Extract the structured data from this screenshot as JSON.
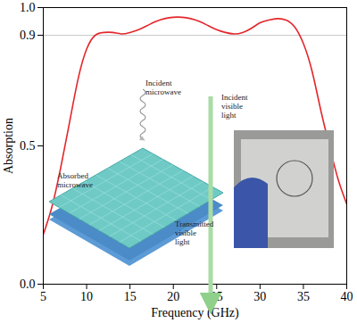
{
  "chart_data": {
    "type": "line",
    "xlabel": "Frequency (GHz)",
    "ylabel": "Absorption",
    "x": [
      5,
      6,
      7,
      8,
      9,
      10,
      11,
      12,
      13,
      14,
      15,
      16,
      17,
      18,
      19,
      20,
      21,
      22,
      23,
      24,
      25,
      26,
      27,
      28,
      29,
      30,
      31,
      32,
      33,
      34,
      35,
      36,
      37,
      38,
      39,
      40
    ],
    "values": [
      0.18,
      0.28,
      0.42,
      0.58,
      0.74,
      0.85,
      0.9,
      0.91,
      0.91,
      0.905,
      0.91,
      0.92,
      0.935,
      0.95,
      0.96,
      0.965,
      0.965,
      0.96,
      0.95,
      0.935,
      0.92,
      0.91,
      0.905,
      0.91,
      0.925,
      0.945,
      0.955,
      0.96,
      0.955,
      0.93,
      0.87,
      0.77,
      0.63,
      0.5,
      0.38,
      0.29
    ],
    "color": "#e3262b",
    "xlim": [
      5,
      40
    ],
    "xticks": [
      5,
      10,
      15,
      20,
      25,
      30,
      35,
      40
    ],
    "ylim": [
      0,
      1
    ],
    "yticks": [
      {
        "value": 0,
        "label": "0.0"
      },
      0.5,
      0.9,
      {
        "value": 1,
        "label": "1.0"
      }
    ],
    "hline": 0.9,
    "grid": false,
    "annotations": [
      "Incident microwave",
      "Incident visible light",
      "Absorbed microwave",
      "Transmitted visible light"
    ]
  }
}
